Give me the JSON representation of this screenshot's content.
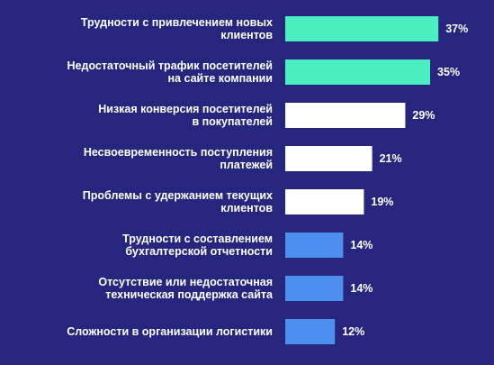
{
  "chart_data": {
    "type": "bar",
    "orientation": "horizontal",
    "title": "",
    "xlabel": "",
    "ylabel": "",
    "xlim": [
      0,
      40
    ],
    "grid": false,
    "legend": "none",
    "value_suffix": "%",
    "colors": {
      "background": "#26267e",
      "text": "#ffffff"
    },
    "categories": [
      [
        "Трудности с привлечением новых",
        "клиентов"
      ],
      [
        "Недостаточный трафик посетителей",
        "на сайте компании"
      ],
      [
        "Низкая конверсия посетителей",
        "в покупателей"
      ],
      [
        "Несвоевременность поступления",
        "платежей"
      ],
      [
        "Проблемы с удержанием текущих",
        "клиентов"
      ],
      [
        "Трудности с составлением",
        "бухгалтерской отчетности"
      ],
      [
        "Отсутствие или недостаточная",
        "техническая поддержка сайта"
      ],
      [
        "Сложности в организации логистики"
      ]
    ],
    "values": [
      37,
      35,
      29,
      21,
      19,
      14,
      14,
      12
    ],
    "bar_colors": [
      "#4cf0c0",
      "#4cf0c0",
      "#ffffff",
      "#ffffff",
      "#ffffff",
      "#4d8ef0",
      "#4d8ef0",
      "#4d8ef0"
    ]
  }
}
